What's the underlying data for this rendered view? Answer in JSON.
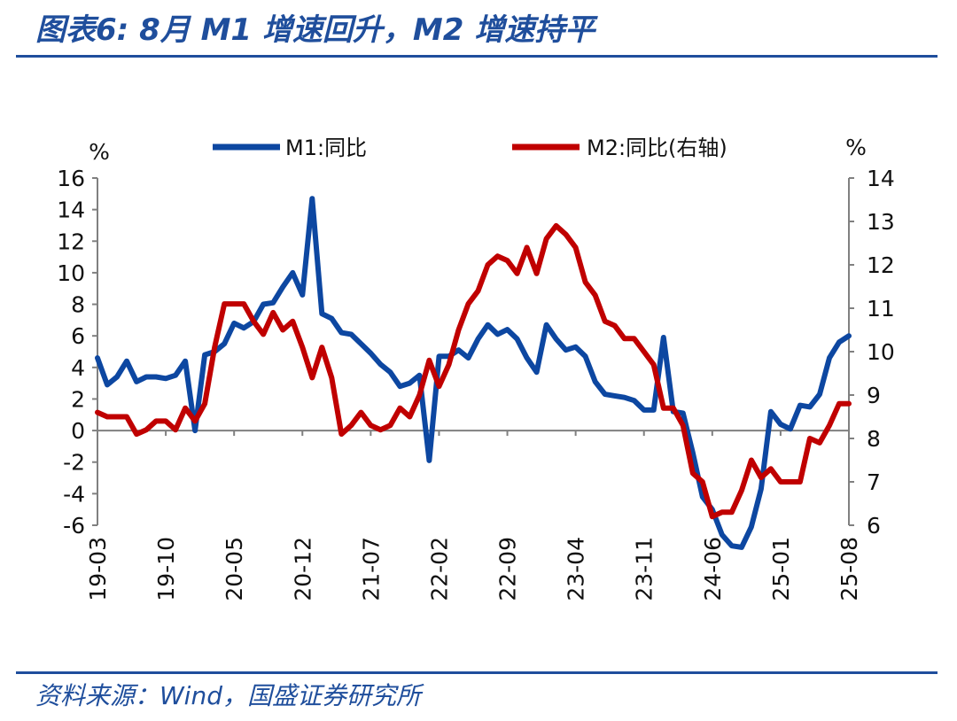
{
  "header": {
    "title": "图表6:  8月 M1 增速回升，M2 增速持平"
  },
  "footer": {
    "source": "资料来源：Wind，国盛证券研究所"
  },
  "colors": {
    "accent": "#1f4e9c",
    "m1": "#0d47a1",
    "m2": "#c00000",
    "axis": "#808080"
  },
  "chart_data": {
    "type": "line",
    "left_unit": "%",
    "right_unit": "%",
    "legend_position": "top",
    "grid": false,
    "x_tick_labels": [
      "19-03",
      "19-10",
      "20-05",
      "20-12",
      "21-07",
      "22-02",
      "22-09",
      "23-04",
      "23-11",
      "24-06",
      "25-01",
      "25-08"
    ],
    "x": [
      "19-03",
      "19-04",
      "19-05",
      "19-06",
      "19-07",
      "19-08",
      "19-09",
      "19-10",
      "19-11",
      "19-12",
      "20-01",
      "20-02",
      "20-03",
      "20-04",
      "20-05",
      "20-06",
      "20-07",
      "20-08",
      "20-09",
      "20-10",
      "20-11",
      "20-12",
      "21-01",
      "21-02",
      "21-03",
      "21-04",
      "21-05",
      "21-06",
      "21-07",
      "21-08",
      "21-09",
      "21-10",
      "21-11",
      "21-12",
      "22-01",
      "22-02",
      "22-03",
      "22-04",
      "22-05",
      "22-06",
      "22-07",
      "22-08",
      "22-09",
      "22-10",
      "22-11",
      "22-12",
      "23-01",
      "23-02",
      "23-03",
      "23-04",
      "23-05",
      "23-06",
      "23-07",
      "23-08",
      "23-09",
      "23-10",
      "23-11",
      "23-12",
      "24-01",
      "24-02",
      "24-03",
      "24-04",
      "24-05",
      "24-06",
      "24-07",
      "24-08",
      "24-09",
      "24-10",
      "24-11",
      "24-12",
      "25-01",
      "25-02",
      "25-03",
      "25-04",
      "25-05",
      "25-06",
      "25-07",
      "25-08"
    ],
    "left_axis": {
      "min": -6,
      "max": 16,
      "ticks": [
        16,
        14,
        12,
        10,
        8,
        6,
        4,
        2,
        0,
        -2,
        -4,
        -6
      ]
    },
    "right_axis": {
      "min": 6,
      "max": 14,
      "ticks": [
        14,
        13,
        12,
        11,
        10,
        9,
        8,
        7,
        6
      ]
    },
    "series": [
      {
        "name": "M1:同比",
        "axis": "left",
        "values": [
          4.6,
          2.9,
          3.4,
          4.4,
          3.1,
          3.4,
          3.4,
          3.3,
          3.5,
          4.4,
          0.0,
          4.8,
          5.0,
          5.5,
          6.8,
          6.5,
          6.9,
          8.0,
          8.1,
          9.1,
          10.0,
          8.6,
          14.7,
          7.4,
          7.1,
          6.2,
          6.1,
          5.5,
          4.9,
          4.2,
          3.7,
          2.8,
          3.0,
          3.5,
          -1.9,
          4.7,
          4.7,
          5.1,
          4.6,
          5.8,
          6.7,
          6.1,
          6.4,
          5.8,
          4.6,
          3.7,
          6.7,
          5.8,
          5.1,
          5.3,
          4.7,
          3.1,
          2.3,
          2.2,
          2.1,
          1.9,
          1.3,
          1.3,
          5.9,
          1.2,
          1.1,
          -1.4,
          -4.2,
          -5.0,
          -6.6,
          -7.3,
          -7.4,
          -6.1,
          -3.7,
          1.2,
          0.4,
          0.1,
          1.6,
          1.5,
          2.3,
          4.6,
          5.6,
          6.0
        ]
      },
      {
        "name": "M2:同比(右轴)",
        "axis": "right",
        "values": [
          8.6,
          8.5,
          8.5,
          8.5,
          8.1,
          8.2,
          8.4,
          8.4,
          8.2,
          8.7,
          8.4,
          8.8,
          10.1,
          11.1,
          11.1,
          11.1,
          10.7,
          10.4,
          10.9,
          10.5,
          10.7,
          10.1,
          9.4,
          10.1,
          9.4,
          8.1,
          8.3,
          8.6,
          8.3,
          8.2,
          8.3,
          8.7,
          8.5,
          9.0,
          9.8,
          9.2,
          9.7,
          10.5,
          11.1,
          11.4,
          12.0,
          12.2,
          12.1,
          11.8,
          12.4,
          11.8,
          12.6,
          12.9,
          12.7,
          12.4,
          11.6,
          11.3,
          10.7,
          10.6,
          10.3,
          10.3,
          10.0,
          9.7,
          8.7,
          8.7,
          8.3,
          7.2,
          7.0,
          6.2,
          6.3,
          6.3,
          6.8,
          7.5,
          7.1,
          7.3,
          7.0,
          7.0,
          7.0,
          8.0,
          7.9,
          8.3,
          8.8,
          8.8
        ]
      }
    ]
  }
}
